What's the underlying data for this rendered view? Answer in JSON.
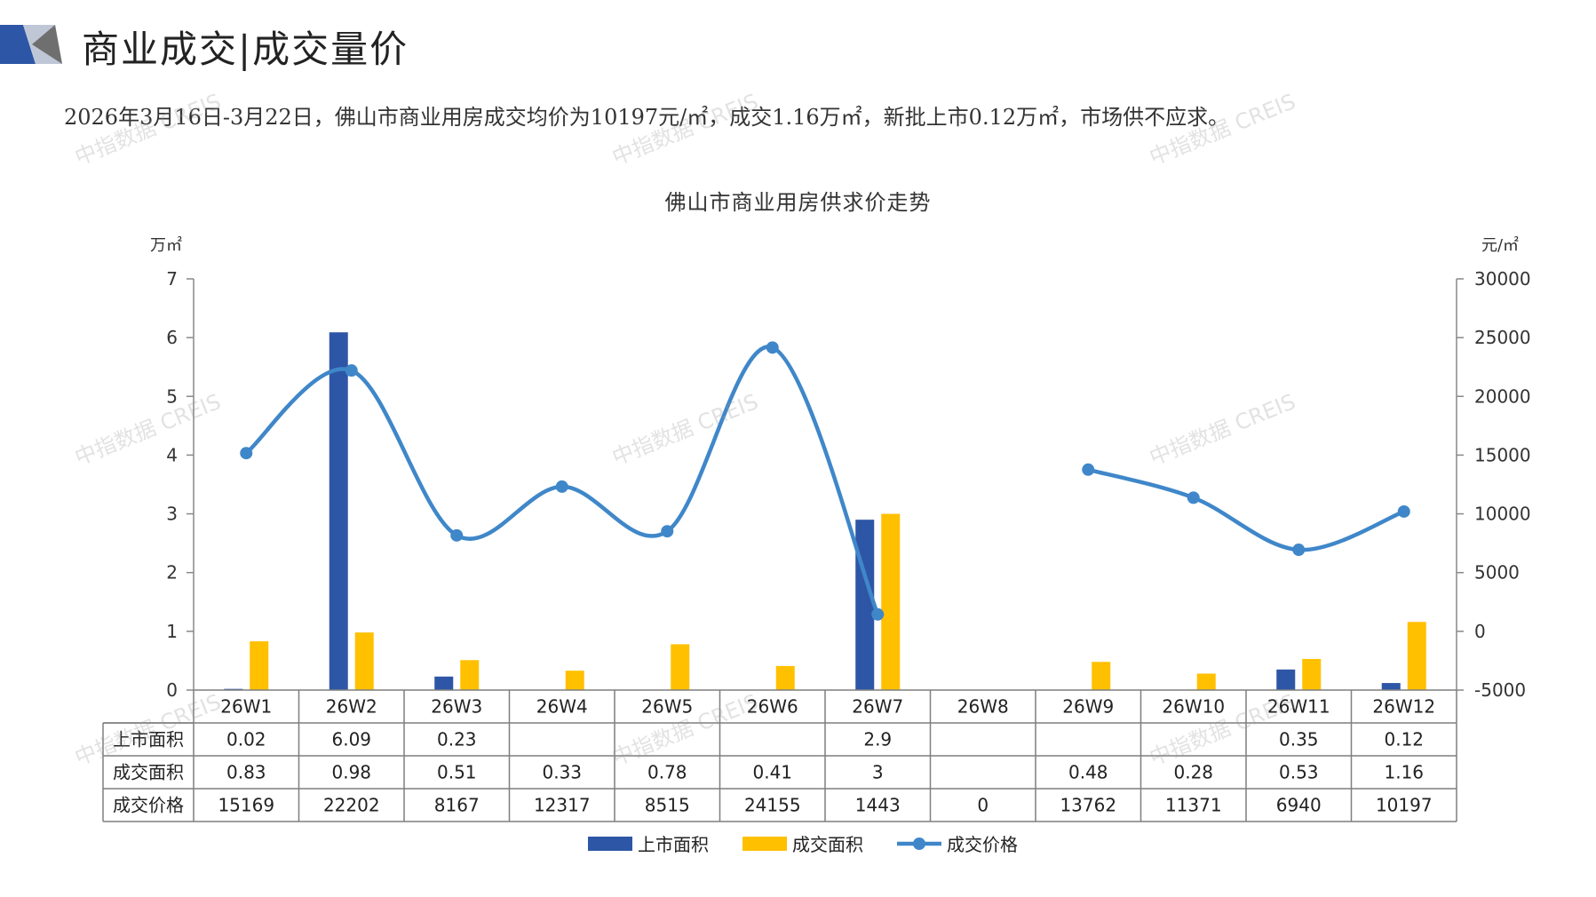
{
  "header": {
    "title": "商业成交|成交量价"
  },
  "summary": "2026年3月16日-3月22日，佛山市商业用房成交均价为10197元/㎡，成交1.16万㎡，新批上市0.12万㎡，市场供不应求。",
  "watermark_text": "中指数据 CREIS",
  "colors": {
    "supply_bar": "#2E56A6",
    "deal_bar": "#FFC000",
    "price_line": "#3F87C9",
    "axis": "#888888",
    "grid_table": "#7F7F7F"
  },
  "chart_data": {
    "type": "bar",
    "title": "佛山市商业用房供求价走势",
    "y_left_unit": "万㎡",
    "y_right_unit": "元/㎡",
    "y_left_range": [
      0,
      7
    ],
    "y_left_ticks": [
      "0",
      "1",
      "2",
      "3",
      "4",
      "5",
      "6",
      "7"
    ],
    "y_right_range": [
      -5000,
      30000
    ],
    "y_right_ticks": [
      "-5000",
      "0",
      "5000",
      "10000",
      "15000",
      "20000",
      "25000",
      "30000"
    ],
    "categories": [
      "26W1",
      "26W2",
      "26W3",
      "26W4",
      "26W5",
      "26W6",
      "26W7",
      "26W8",
      "26W9",
      "26W10",
      "26W11",
      "26W12"
    ],
    "series": [
      {
        "name": "上市面积",
        "kind": "bar",
        "axis": "left",
        "values": [
          0.02,
          6.09,
          0.23,
          null,
          null,
          null,
          2.9,
          null,
          null,
          null,
          0.35,
          0.12
        ],
        "labels": [
          "0.02",
          "6.09",
          "0.23",
          "",
          "",
          "",
          "2.9",
          "",
          "",
          "",
          "0.35",
          "0.12"
        ]
      },
      {
        "name": "成交面积",
        "kind": "bar",
        "axis": "left",
        "values": [
          0.83,
          0.98,
          0.51,
          0.33,
          0.78,
          0.41,
          3,
          null,
          0.48,
          0.28,
          0.53,
          1.16
        ],
        "labels": [
          "0.83",
          "0.98",
          "0.51",
          "0.33",
          "0.78",
          "0.41",
          "3",
          "",
          "0.48",
          "0.28",
          "0.53",
          "1.16"
        ]
      },
      {
        "name": "成交价格",
        "kind": "line",
        "axis": "right",
        "values": [
          15169,
          22202,
          8167,
          12317,
          8515,
          24155,
          1443,
          0,
          13762,
          11371,
          6940,
          10197
        ],
        "labels": [
          "15169",
          "22202",
          "8167",
          "12317",
          "8515",
          "24155",
          "1443",
          "0",
          "13762",
          "11371",
          "6940",
          "10197"
        ]
      }
    ],
    "legend_position": "bottom-center",
    "grid": false,
    "data_table": true
  }
}
